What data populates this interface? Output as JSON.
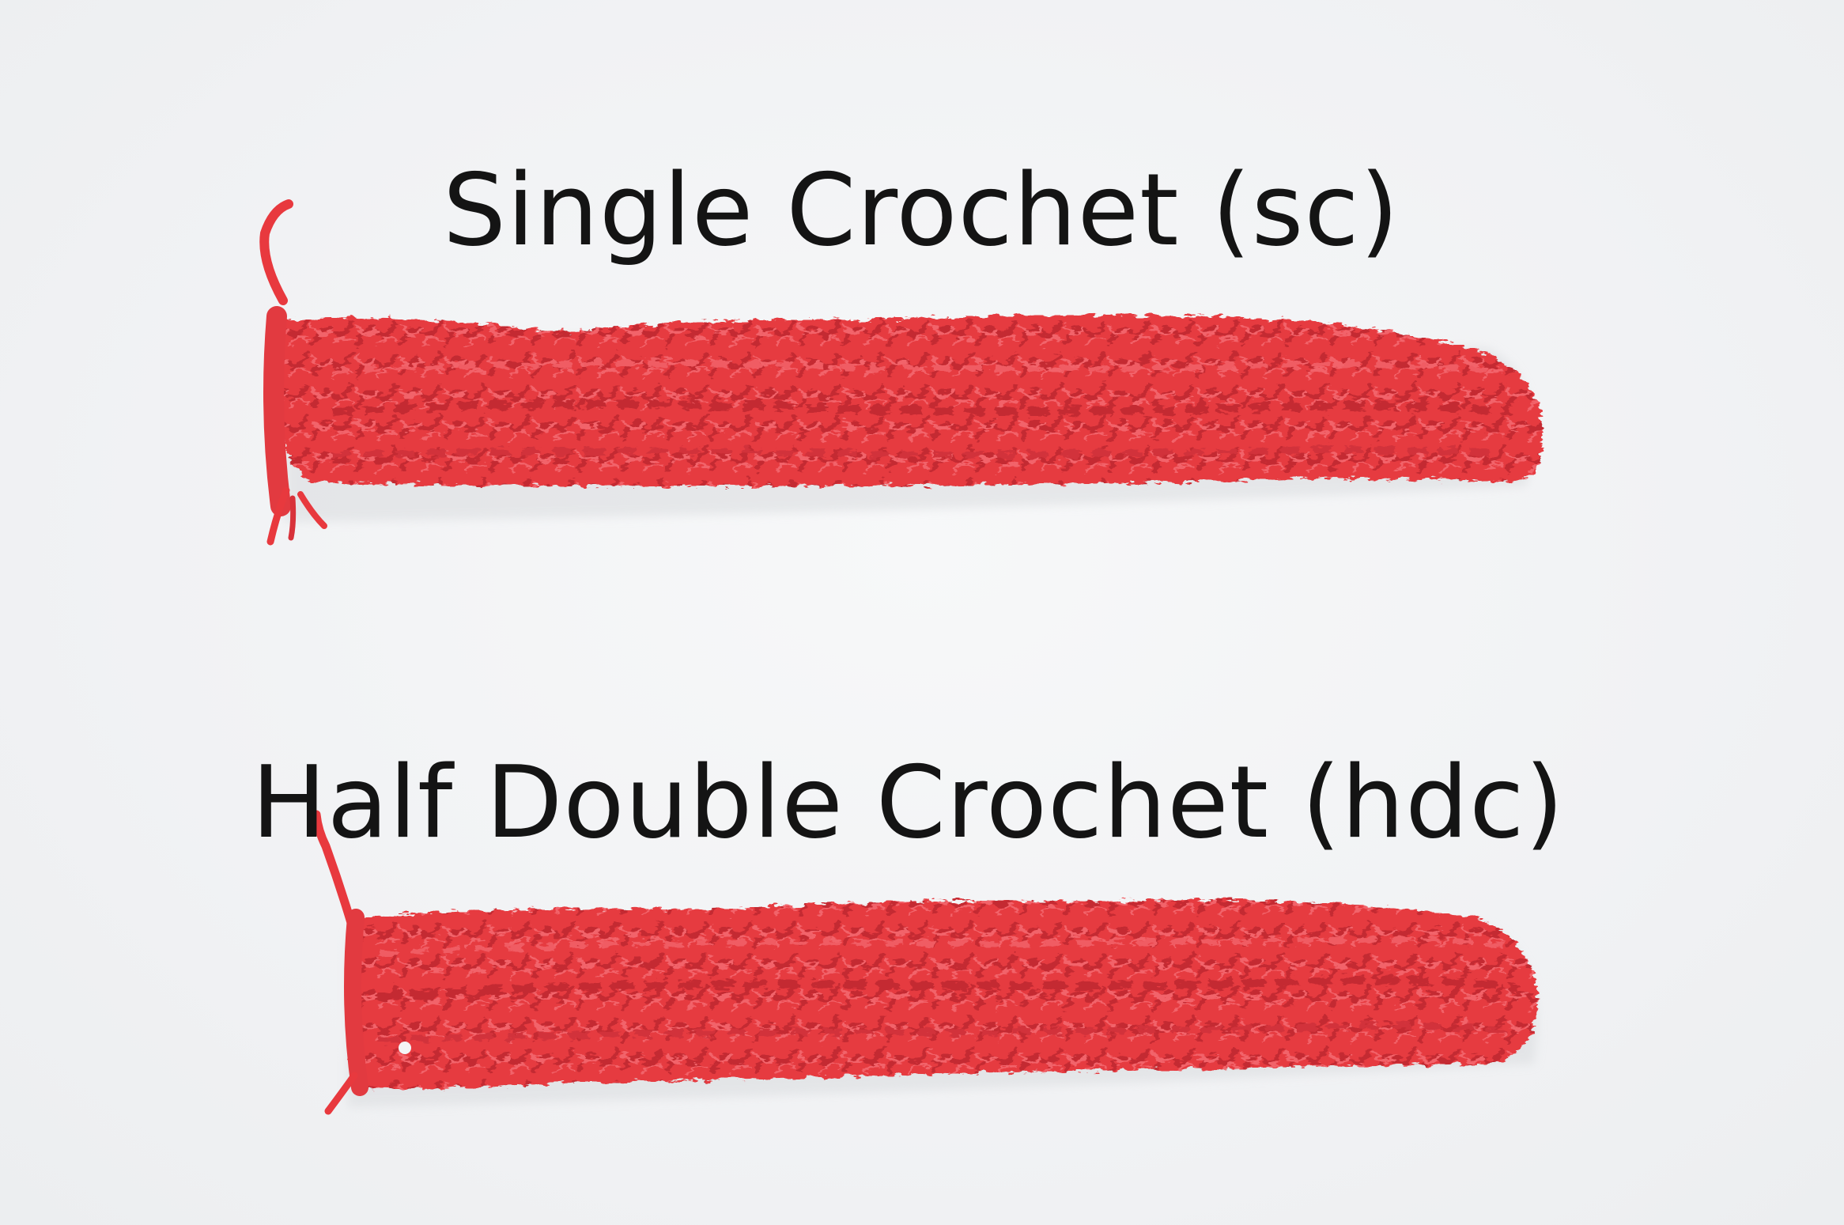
{
  "labels": {
    "single_crochet": "Single Crochet (sc)",
    "half_double_crochet": "Half Double Crochet (hdc)"
  },
  "colors": {
    "background": "#f4f5f6",
    "yarn": "#e8393e",
    "yarn_shadow": "#c42a31",
    "yarn_highlight": "#f2636a",
    "text": "#141414"
  },
  "swatches": [
    {
      "name": "single-crochet-swatch",
      "stitch": "sc"
    },
    {
      "name": "half-double-crochet-swatch",
      "stitch": "hdc"
    }
  ]
}
